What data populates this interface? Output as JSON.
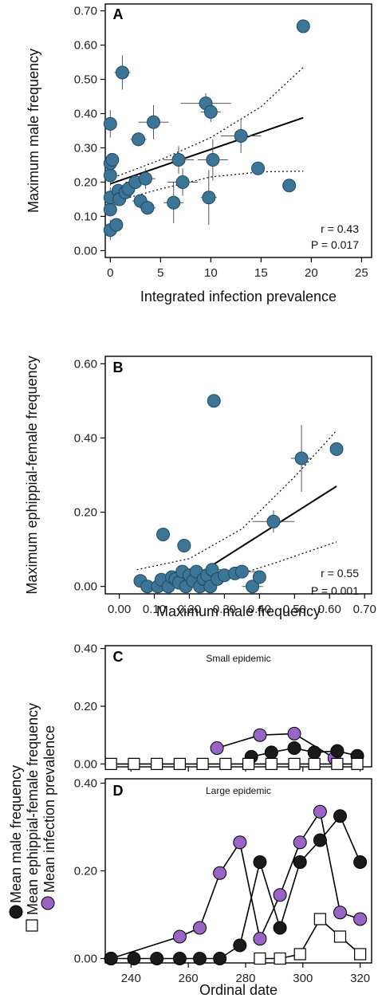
{
  "colors": {
    "teal": "#3d7596",
    "teal_edge": "#1f4a63",
    "purple": "#9a63c6",
    "black": "#1a1a1a",
    "white": "#ffffff",
    "errorbar": "#555555"
  },
  "chart_data": [
    {
      "type": "scatter",
      "panel": "A",
      "xlabel": "Integrated infection prevalence",
      "ylabel": "Maximum male frequency",
      "xlim": [
        -0.5,
        26
      ],
      "ylim": [
        -0.02,
        0.72
      ],
      "xticks": [
        0,
        5,
        10,
        15,
        20,
        25
      ],
      "xtick_labels": [
        "0",
        "5",
        "10",
        "15",
        "20",
        "25"
      ],
      "yticks": [
        0.0,
        0.1,
        0.2,
        0.3,
        0.4,
        0.5,
        0.6,
        0.7
      ],
      "ytick_labels": [
        "0.00",
        "0.10",
        "0.20",
        "0.30",
        "0.40",
        "0.50",
        "0.60",
        "0.70"
      ],
      "annotation_r": "r = 0.43",
      "annotation_p": "P = 0.017",
      "fit": {
        "x": [
          0,
          19.2
        ],
        "y": [
          0.195,
          0.388
        ]
      },
      "ci_upper": [
        [
          0,
          0.21
        ],
        [
          5,
          0.265
        ],
        [
          10,
          0.33
        ],
        [
          15,
          0.42
        ],
        [
          19.2,
          0.535
        ]
      ],
      "ci_lower": [
        [
          0,
          0.14
        ],
        [
          5,
          0.18
        ],
        [
          10,
          0.215
        ],
        [
          15,
          0.23
        ],
        [
          19.2,
          0.232
        ]
      ],
      "points": [
        {
          "x": 0,
          "y": 0.06,
          "xe": 0,
          "ye": 0.03
        },
        {
          "x": 0,
          "y": 0.12,
          "xe": 0,
          "ye": 0.02
        },
        {
          "x": 0,
          "y": 0.155,
          "xe": 0,
          "ye": 0.03
        },
        {
          "x": 0,
          "y": 0.22,
          "xe": 0,
          "ye": 0.03
        },
        {
          "x": 0,
          "y": 0.255,
          "xe": 0,
          "ye": 0.03
        },
        {
          "x": 0,
          "y": 0.37,
          "xe": 0,
          "ye": 0.04
        },
        {
          "x": 0.2,
          "y": 0.265,
          "xe": 0,
          "ye": 0.02
        },
        {
          "x": 0.6,
          "y": 0.075,
          "xe": 0,
          "ye": 0.02
        },
        {
          "x": 0.8,
          "y": 0.175,
          "xe": 0.6,
          "ye": 0.02
        },
        {
          "x": 0.9,
          "y": 0.15,
          "xe": 0.5,
          "ye": 0.02
        },
        {
          "x": 1.2,
          "y": 0.52,
          "xe": 0.8,
          "ye": 0.05
        },
        {
          "x": 1.5,
          "y": 0.17,
          "xe": 0.6,
          "ye": 0.02
        },
        {
          "x": 1.8,
          "y": 0.18,
          "xe": 0.7,
          "ye": 0.02
        },
        {
          "x": 2.5,
          "y": 0.2,
          "xe": 1.0,
          "ye": 0.02
        },
        {
          "x": 2.8,
          "y": 0.325,
          "xe": 0.8,
          "ye": 0.02
        },
        {
          "x": 3.0,
          "y": 0.145,
          "xe": 0.8,
          "ye": 0.02
        },
        {
          "x": 3.5,
          "y": 0.21,
          "xe": 1.0,
          "ye": 0.03
        },
        {
          "x": 3.7,
          "y": 0.125,
          "xe": 0.8,
          "ye": 0.02
        },
        {
          "x": 4.3,
          "y": 0.375,
          "xe": 1.5,
          "ye": 0.05
        },
        {
          "x": 6.3,
          "y": 0.14,
          "xe": 1.0,
          "ye": 0.06
        },
        {
          "x": 6.8,
          "y": 0.265,
          "xe": 1.5,
          "ye": 0.04
        },
        {
          "x": 7.2,
          "y": 0.2,
          "xe": 1.5,
          "ye": 0.04
        },
        {
          "x": 9.5,
          "y": 0.43,
          "xe": 2.5,
          "ye": 0.03
        },
        {
          "x": 9.8,
          "y": 0.155,
          "xe": 0.8,
          "ye": 0.08
        },
        {
          "x": 10.0,
          "y": 0.405,
          "xe": 1.0,
          "ye": 0.03
        },
        {
          "x": 10.2,
          "y": 0.265,
          "xe": 1.5,
          "ye": 0.06
        },
        {
          "x": 13.0,
          "y": 0.335,
          "xe": 2.0,
          "ye": 0.05
        },
        {
          "x": 14.7,
          "y": 0.24,
          "xe": 0,
          "ye": 0
        },
        {
          "x": 17.8,
          "y": 0.19,
          "xe": 0,
          "ye": 0
        },
        {
          "x": 19.2,
          "y": 0.655,
          "xe": 0,
          "ye": 0
        }
      ]
    },
    {
      "type": "scatter",
      "panel": "B",
      "xlabel": "Maximum male frequency",
      "ylabel": "Maximum ephippial-female frequency",
      "xlim": [
        -0.04,
        0.72
      ],
      "ylim": [
        -0.02,
        0.62
      ],
      "xticks": [
        0.0,
        0.1,
        0.2,
        0.3,
        0.4,
        0.5,
        0.6,
        0.7
      ],
      "xtick_labels": [
        "0.00",
        "0.10",
        "0.20",
        "0.30",
        "0.40",
        "0.50",
        "0.60",
        "0.70"
      ],
      "yticks": [
        0.0,
        0.2,
        0.4,
        0.6
      ],
      "ytick_labels": [
        "0.00",
        "0.20",
        "0.40",
        "0.60"
      ],
      "annotation_r": "r = 0.55",
      "annotation_p": "P = 0.001",
      "fit": {
        "x": [
          0.17,
          0.62
        ],
        "y": [
          0.0,
          0.27
        ]
      },
      "ci_upper": [
        [
          0.05,
          0.045
        ],
        [
          0.2,
          0.075
        ],
        [
          0.35,
          0.155
        ],
        [
          0.5,
          0.295
        ],
        [
          0.62,
          0.42
        ]
      ],
      "ci_lower": [
        [
          0.17,
          0.0
        ],
        [
          0.3,
          0.02
        ],
        [
          0.45,
          0.065
        ],
        [
          0.62,
          0.12
        ]
      ],
      "points": [
        {
          "x": 0.06,
          "y": 0.015,
          "xe": 0,
          "ye": 0
        },
        {
          "x": 0.08,
          "y": 0.0,
          "xe": 0,
          "ye": 0
        },
        {
          "x": 0.11,
          "y": 0.0,
          "xe": 0,
          "ye": 0
        },
        {
          "x": 0.12,
          "y": 0.018,
          "xe": 0,
          "ye": 0
        },
        {
          "x": 0.125,
          "y": 0.14,
          "xe": 0,
          "ye": 0
        },
        {
          "x": 0.14,
          "y": 0.0,
          "xe": 0,
          "ye": 0
        },
        {
          "x": 0.15,
          "y": 0.025,
          "xe": 0.02,
          "ye": 0
        },
        {
          "x": 0.16,
          "y": 0.02,
          "xe": 0,
          "ye": 0
        },
        {
          "x": 0.17,
          "y": 0.01,
          "xe": 0,
          "ye": 0
        },
        {
          "x": 0.18,
          "y": 0.04,
          "xe": 0.02,
          "ye": 0.01
        },
        {
          "x": 0.185,
          "y": 0.11,
          "xe": 0,
          "ye": 0
        },
        {
          "x": 0.19,
          "y": 0.0,
          "xe": 0,
          "ye": 0
        },
        {
          "x": 0.2,
          "y": 0.03,
          "xe": 0.03,
          "ye": 0.01
        },
        {
          "x": 0.21,
          "y": 0.015,
          "xe": 0,
          "ye": 0
        },
        {
          "x": 0.22,
          "y": 0.04,
          "xe": 0,
          "ye": 0
        },
        {
          "x": 0.23,
          "y": 0.0,
          "xe": 0,
          "ye": 0
        },
        {
          "x": 0.24,
          "y": 0.02,
          "xe": 0,
          "ye": 0
        },
        {
          "x": 0.25,
          "y": 0.03,
          "xe": 0.04,
          "ye": 0
        },
        {
          "x": 0.26,
          "y": 0.0,
          "xe": 0,
          "ye": 0
        },
        {
          "x": 0.265,
          "y": 0.045,
          "xe": 0.04,
          "ye": 0.01
        },
        {
          "x": 0.27,
          "y": 0.5,
          "xe": 0,
          "ye": 0
        },
        {
          "x": 0.28,
          "y": 0.02,
          "xe": 0,
          "ye": 0
        },
        {
          "x": 0.3,
          "y": 0.03,
          "xe": 0.04,
          "ye": 0
        },
        {
          "x": 0.33,
          "y": 0.035,
          "xe": 0,
          "ye": 0
        },
        {
          "x": 0.35,
          "y": 0.04,
          "xe": 0.05,
          "ye": 0
        },
        {
          "x": 0.38,
          "y": 0.0,
          "xe": 0.03,
          "ye": 0
        },
        {
          "x": 0.4,
          "y": 0.025,
          "xe": 0,
          "ye": 0
        },
        {
          "x": 0.44,
          "y": 0.175,
          "xe": 0.06,
          "ye": 0.03
        },
        {
          "x": 0.52,
          "y": 0.345,
          "xe": 0.03,
          "ye": 0.09
        },
        {
          "x": 0.62,
          "y": 0.37,
          "xe": 0,
          "ye": 0
        }
      ]
    },
    {
      "type": "line",
      "panel": "C",
      "subtitle": "Small epidemic",
      "xlim": [
        231,
        324
      ],
      "ylim": [
        -0.01,
        0.41
      ],
      "xticks": [
        240,
        260,
        280,
        300,
        320
      ],
      "yticks": [
        0.0,
        0.2,
        0.4
      ],
      "ytick_labels": [
        "0.00",
        "0.20",
        "0.40"
      ],
      "series": [
        {
          "name": "Mean infection prevalence",
          "marker": "purple_circle",
          "x": [
            270,
            285,
            297,
            311
          ],
          "y": [
            0.055,
            0.1,
            0.105,
            0.02
          ]
        },
        {
          "name": "Mean male frequency",
          "marker": "black_circle",
          "x": [
            282,
            289,
            297,
            304,
            312,
            319
          ],
          "y": [
            0.025,
            0.04,
            0.055,
            0.04,
            0.045,
            0.028
          ]
        },
        {
          "name": "Mean ephippial-female frequency",
          "marker": "white_square",
          "x": [
            233,
            241,
            249,
            257,
            265,
            273,
            281,
            289,
            297,
            304,
            312,
            319
          ],
          "y": [
            0,
            0,
            0,
            0,
            0,
            0,
            0,
            0,
            0,
            0,
            0,
            0
          ]
        }
      ]
    },
    {
      "type": "line",
      "panel": "D",
      "subtitle": "Large epidemic",
      "xlabel": "Ordinal date",
      "xlim": [
        231,
        324
      ],
      "ylim": [
        -0.01,
        0.41
      ],
      "xticks": [
        240,
        260,
        280,
        300,
        320
      ],
      "xtick_labels": [
        "240",
        "260",
        "280",
        "300",
        "320"
      ],
      "yticks": [
        0.0,
        0.2,
        0.4
      ],
      "ytick_labels": [
        "0.00",
        "0.20",
        "0.40"
      ],
      "series": [
        {
          "name": "Mean infection prevalence",
          "marker": "purple_circle",
          "x": [
            233,
            257,
            264,
            271,
            278,
            285,
            292,
            299,
            306,
            313,
            320
          ],
          "y": [
            0.0,
            0.05,
            0.07,
            0.195,
            0.265,
            0.045,
            0.145,
            0.265,
            0.335,
            0.105,
            0.09
          ]
        },
        {
          "name": "Mean male frequency",
          "marker": "black_circle",
          "x": [
            233,
            241,
            249,
            257,
            264,
            271,
            278,
            285,
            292,
            299,
            306,
            313,
            320
          ],
          "y": [
            0,
            0,
            0,
            0,
            0,
            0,
            0.03,
            0.22,
            0.07,
            0.22,
            0.27,
            0.325,
            0.22
          ]
        },
        {
          "name": "Mean ephippial-female frequency",
          "marker": "white_square",
          "x": [
            285,
            292,
            299,
            306,
            313,
            320
          ],
          "y": [
            0.0,
            0.0,
            0.01,
            0.09,
            0.05,
            0.01
          ]
        }
      ]
    }
  ],
  "shared_ylabel_cd": {
    "line1": "Mean male frequency",
    "line2": "Mean ephippial-female frequency",
    "line3": "Mean infection prevalence"
  }
}
